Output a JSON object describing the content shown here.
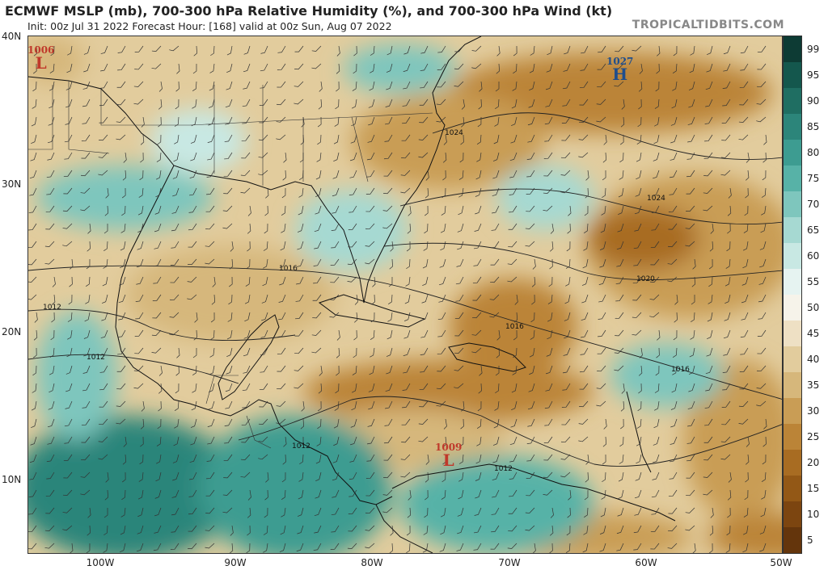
{
  "header": {
    "title": "ECMWF MSLP (mb), 700-300 hPa Relative Humidity (%), and 700-300 hPa Wind (kt)",
    "subtitle": "Init: 00z Jul 31 2022   Forecast Hour: [168]   valid at 00z Sun, Aug 07 2022",
    "credit": "TROPICALTIDBITS.COM"
  },
  "axes": {
    "lat_labels": [
      "40N",
      "30N",
      "20N",
      "10N"
    ],
    "lon_labels": [
      "100W",
      "90W",
      "80W",
      "70W",
      "60W",
      "50W"
    ]
  },
  "colorbar": {
    "labels": [
      "99",
      "95",
      "90",
      "85",
      "80",
      "75",
      "70",
      "65",
      "60",
      "55",
      "50",
      "45",
      "40",
      "35",
      "30",
      "25",
      "20",
      "15",
      "10",
      "5"
    ],
    "colors": [
      "#0d3b34",
      "#14574d",
      "#1f6e62",
      "#2c857a",
      "#3d9c91",
      "#57b2a7",
      "#7ec6bd",
      "#a6d9d2",
      "#c8e8e3",
      "#e6f3f1",
      "#f6f3ea",
      "#eee0c4",
      "#e2cc9d",
      "#d6b77b",
      "#c99d55",
      "#bb8437",
      "#a86c22",
      "#935816",
      "#7c4510",
      "#64350c"
    ]
  },
  "systems": [
    {
      "id": "low-northwest",
      "value": "1006",
      "letter": "L",
      "color": "#c0392b"
    },
    {
      "id": "high-atlantic",
      "value": "1027",
      "letter": "H",
      "color": "#1f4e8c"
    },
    {
      "id": "low-caribbean",
      "value": "1009",
      "letter": "L",
      "color": "#c0392b"
    }
  ],
  "isobar_labels": [
    "1024",
    "1024",
    "1016",
    "1020",
    "1016",
    "1016",
    "1012",
    "1012",
    "1012",
    "1012"
  ]
}
